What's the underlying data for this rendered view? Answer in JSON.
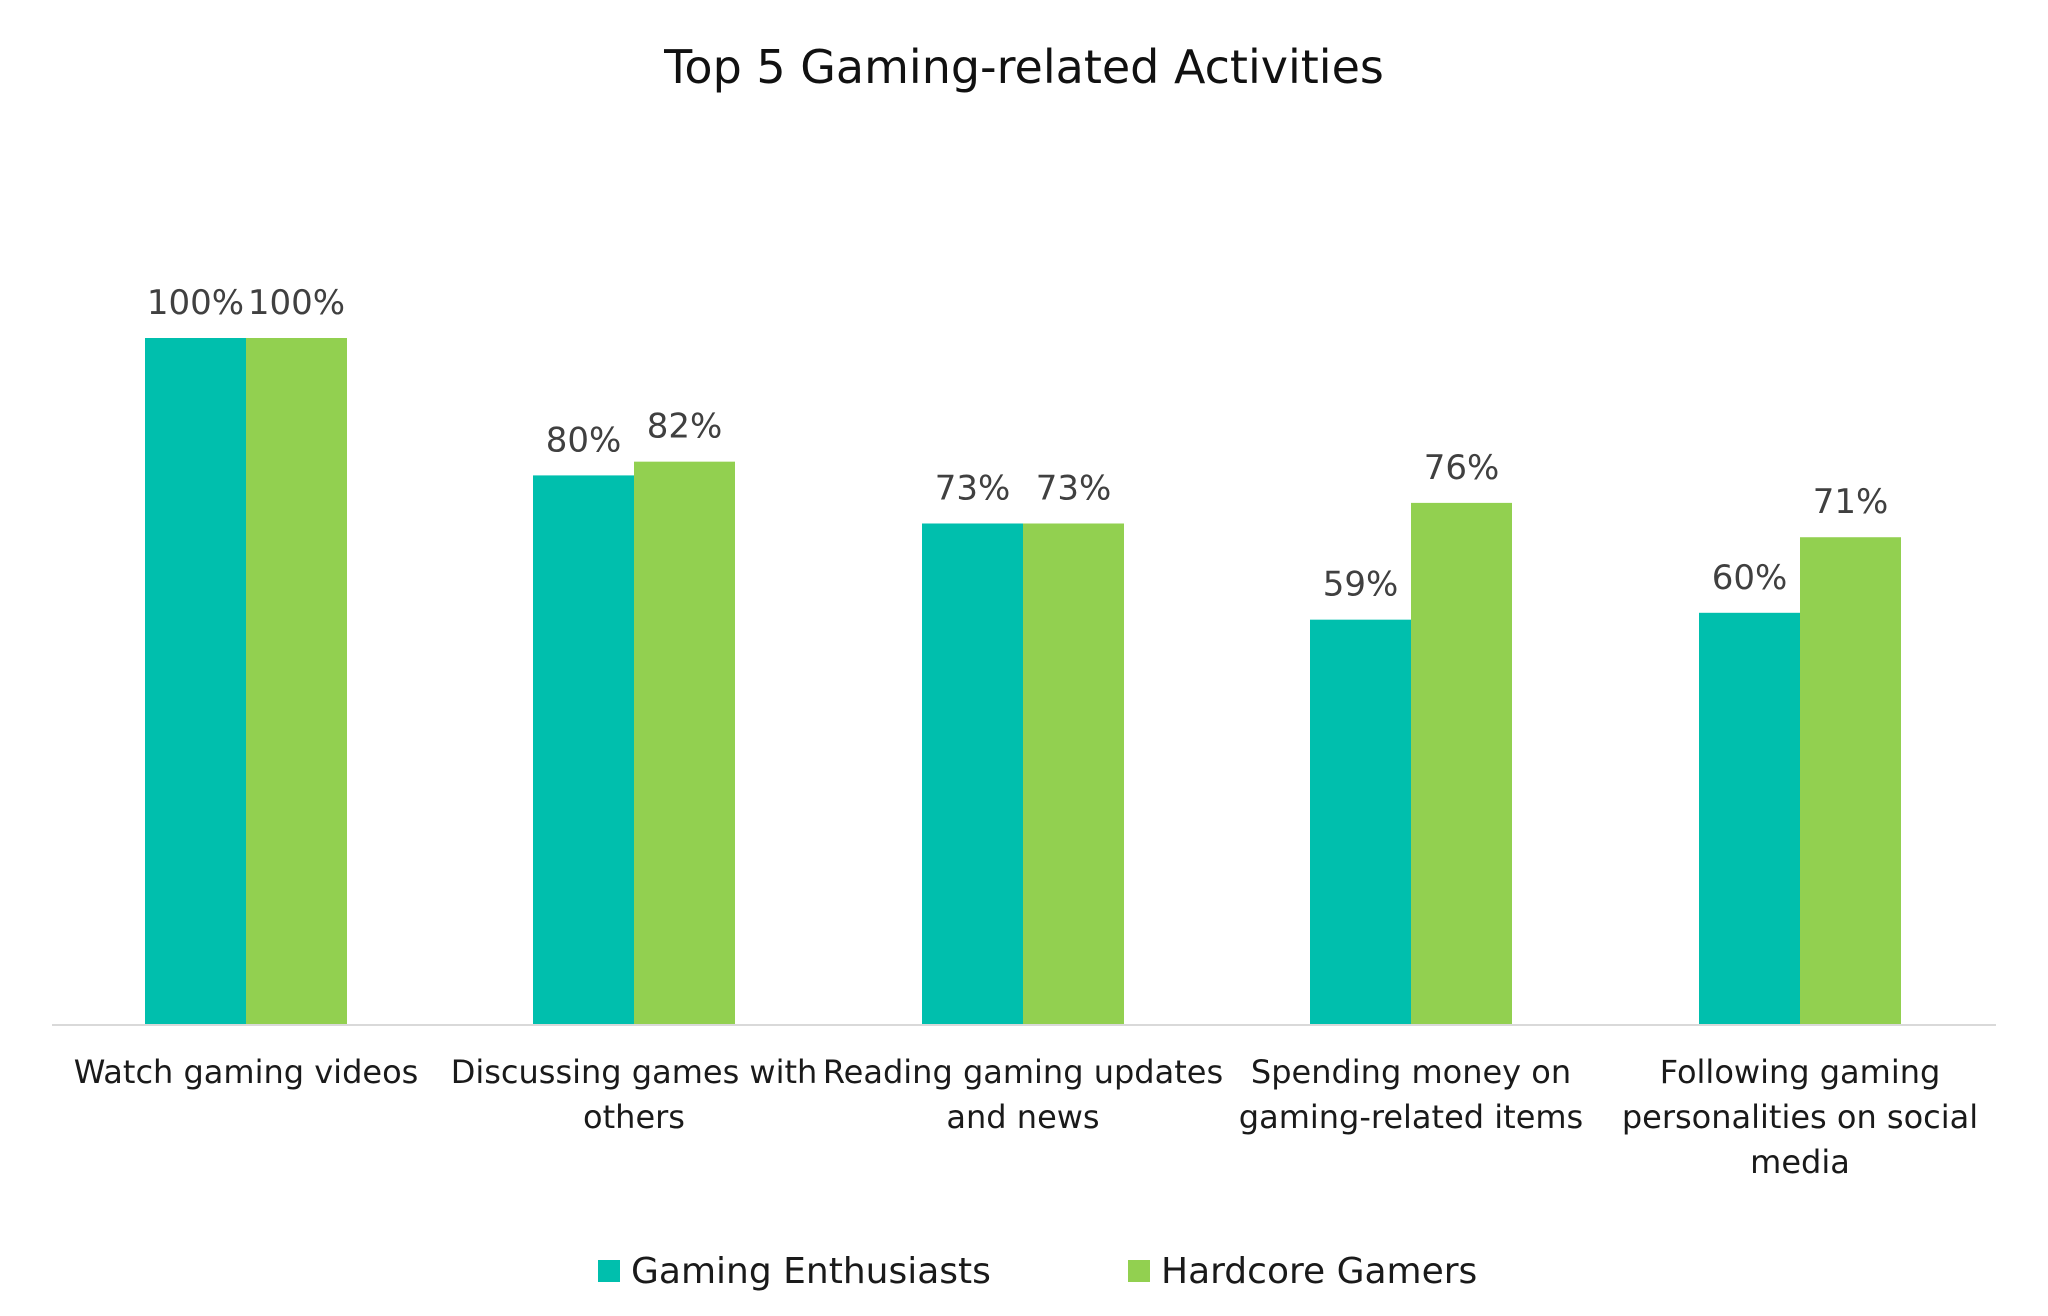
{
  "chart_data": {
    "type": "bar",
    "title": "Top 5 Gaming-related Activities",
    "xlabel": "",
    "ylabel": "",
    "ylim": [
      0,
      100
    ],
    "grid": false,
    "legend_position": "bottom",
    "categories": [
      [
        "Watch gaming videos"
      ],
      [
        "Discussing games with",
        "others"
      ],
      [
        "Reading gaming updates",
        "and news"
      ],
      [
        "Spending money on",
        "gaming-related items"
      ],
      [
        "Following gaming",
        "personalities on social",
        "media"
      ]
    ],
    "series": [
      {
        "name": "Gaming Enthusiasts",
        "color": "#00bfad",
        "values": [
          100,
          80,
          73,
          59,
          60
        ],
        "labels": [
          "100%",
          "80%",
          "73%",
          "59%",
          "60%"
        ]
      },
      {
        "name": "Hardcore Gamers",
        "color": "#92d050",
        "values": [
          100,
          82,
          73,
          76,
          71
        ],
        "labels": [
          "100%",
          "82%",
          "73%",
          "76%",
          "71%"
        ]
      }
    ],
    "axis_color": "#d9d9d9"
  }
}
